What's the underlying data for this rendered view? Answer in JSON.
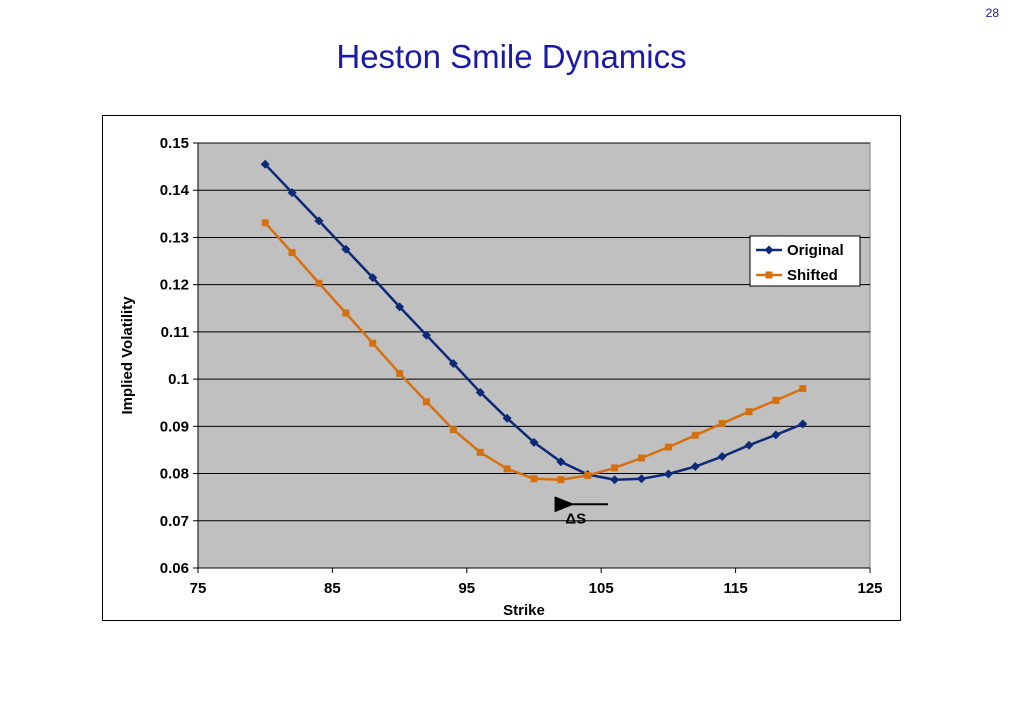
{
  "page": {
    "number": "28",
    "title": "Heston Smile Dynamics"
  },
  "chart_data": {
    "type": "line",
    "title": "",
    "xlabel": "Strike",
    "ylabel": "Implied Volatility",
    "xlim": [
      75,
      125
    ],
    "ylim": [
      0.06,
      0.15
    ],
    "xticks": [
      75,
      85,
      95,
      105,
      115,
      125
    ],
    "yticks": [
      0.06,
      0.07,
      0.08,
      0.09,
      0.1,
      0.11,
      0.12,
      0.13,
      0.14,
      0.15
    ],
    "ytick_labels": [
      "0.06",
      "0.07",
      "0.08",
      "0.09",
      "0.1",
      "0.11",
      "0.12",
      "0.13",
      "0.14",
      "0.15"
    ],
    "grid": "horizontal",
    "plot_background": "#c0c0c0",
    "legend": "right",
    "x": [
      80,
      82,
      84,
      86,
      88,
      90,
      92,
      94,
      96,
      98,
      100,
      102,
      104,
      106,
      108,
      110,
      112,
      114,
      116,
      118,
      120
    ],
    "series": [
      {
        "name": "Original",
        "color": "#0d2a78",
        "marker": "diamond",
        "values": [
          0.1455,
          0.1395,
          0.1335,
          0.1275,
          0.1215,
          0.1153,
          0.1093,
          0.1033,
          0.0972,
          0.0917,
          0.0866,
          0.0825,
          0.0798,
          0.0787,
          0.0789,
          0.0799,
          0.0815,
          0.0836,
          0.086,
          0.0882,
          0.0905
        ]
      },
      {
        "name": "Shifted",
        "color": "#d4700f",
        "marker": "square",
        "values": [
          0.1331,
          0.1268,
          0.1203,
          0.114,
          0.1076,
          0.1012,
          0.0952,
          0.0893,
          0.0845,
          0.081,
          0.0789,
          0.0787,
          0.0796,
          0.0812,
          0.0833,
          0.0856,
          0.0881,
          0.0906,
          0.0931,
          0.0955,
          0.098
        ]
      }
    ],
    "annotations": [
      {
        "text": "ΔS",
        "arrow_from": [
          105.5,
          0.0735
        ],
        "arrow_to": [
          102.2,
          0.0735
        ],
        "text_at": [
          104,
          0.0705
        ]
      }
    ]
  }
}
